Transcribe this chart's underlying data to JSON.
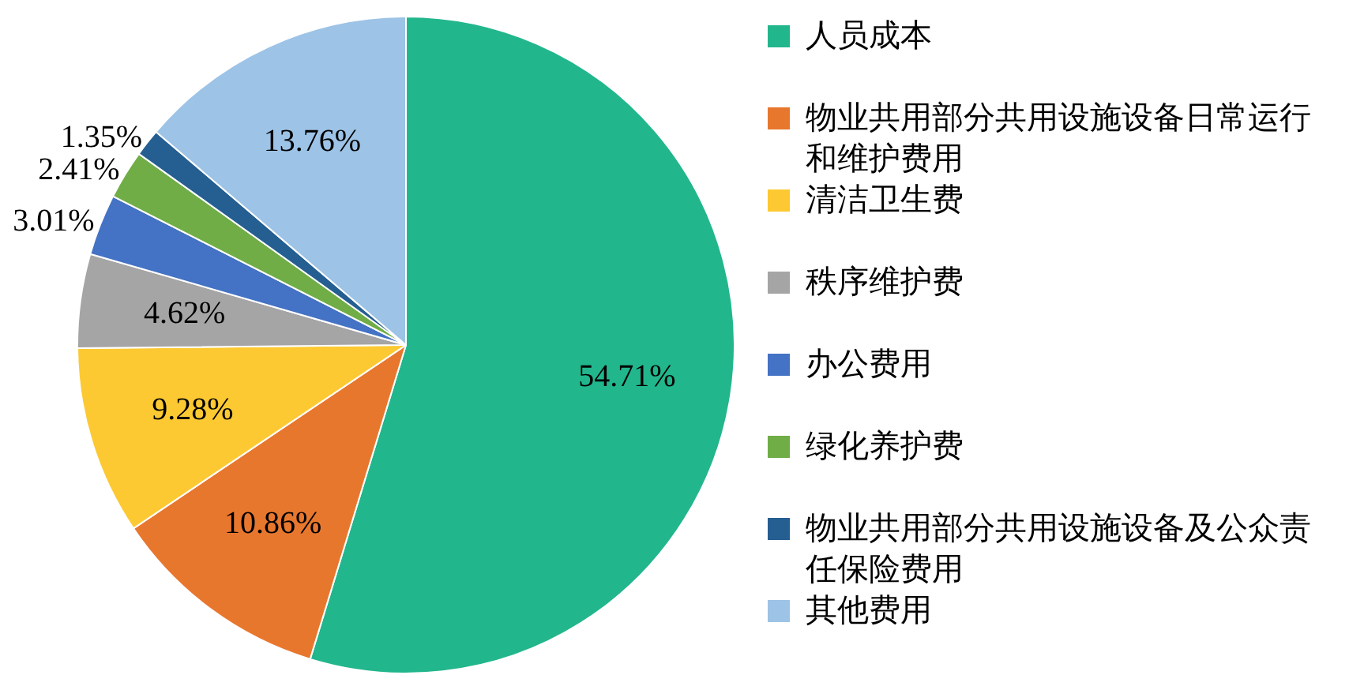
{
  "chart_data": {
    "type": "pie",
    "categories": [
      "人员成本",
      "物业共用部分共用设施设备日常运行和维护费用",
      "清洁卫生费",
      "秩序维护费",
      "办公费用",
      "绿化养护费",
      "物业共用部分共用设施设备及公众责任保险费用",
      "其他费用"
    ],
    "values": [
      54.71,
      10.86,
      9.28,
      4.62,
      3.01,
      2.41,
      1.35,
      13.76
    ],
    "value_labels": [
      "54.71%",
      "10.86%",
      "9.28%",
      "4.62%",
      "3.01%",
      "2.41%",
      "1.35%",
      "13.76%"
    ],
    "colors": [
      "#22b68d",
      "#e8772e",
      "#fcc932",
      "#a5a5a5",
      "#4472c4",
      "#70ad47",
      "#255e91",
      "#9dc3e6"
    ],
    "legend": "right"
  }
}
